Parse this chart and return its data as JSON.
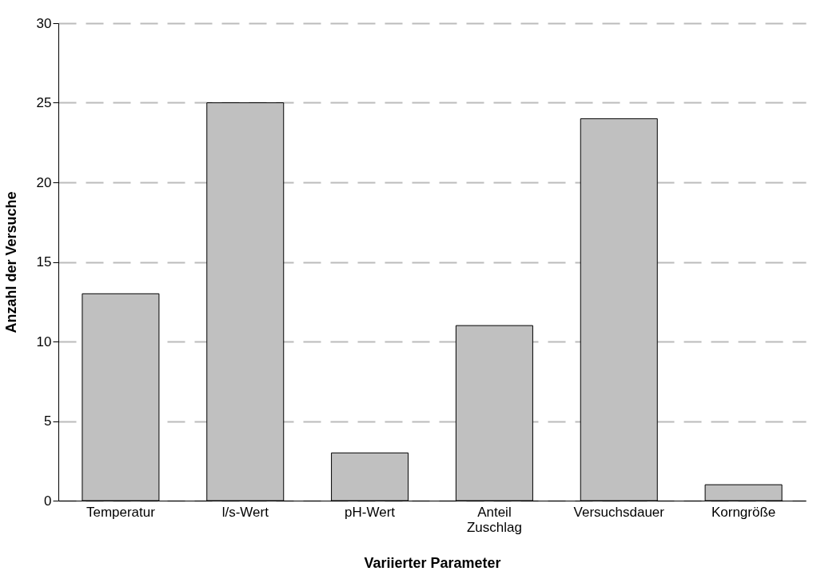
{
  "chart_data": {
    "type": "bar",
    "categories": [
      "Temperatur",
      "l/s-Wert",
      "pH-Wert",
      "Anteil Zuschlag",
      "Versuchsdauer",
      "Korngröße"
    ],
    "values": [
      13,
      25,
      3,
      11,
      24,
      1
    ],
    "color": "#c0c0c0",
    "xlabel": "Variierter Parameter",
    "ylabel": "Anzahl der Versuche",
    "ylim": [
      0,
      30
    ],
    "yticks": [
      0,
      5,
      10,
      15,
      20,
      25,
      30
    ],
    "grid": "y"
  }
}
